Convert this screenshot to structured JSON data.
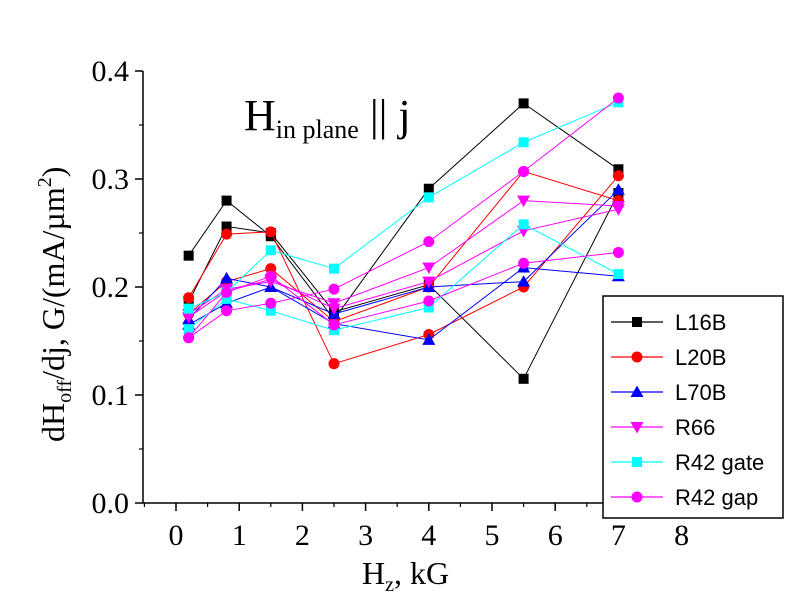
{
  "chart_data": {
    "type": "line",
    "xlabel": {
      "main": "H",
      "sub": "z",
      "rest": ", kG"
    },
    "ylabel": {
      "a": "dH",
      "sub": "off",
      "b": "/dj, G/(mA/µm",
      "sup": "2",
      "c": ")"
    },
    "annotation": {
      "main": "H",
      "sub": "in plane",
      "rest": " || j"
    },
    "xlim": [
      -0.5,
      8.5
    ],
    "ylim": [
      0,
      0.4
    ],
    "xticks": [
      0,
      1,
      2,
      3,
      4,
      5,
      6,
      7,
      8
    ],
    "yticks": [
      0.0,
      0.1,
      0.2,
      0.3,
      0.4
    ],
    "xtick_labels": [
      "0",
      "1",
      "2",
      "3",
      "4",
      "5",
      "6",
      "7",
      "8"
    ],
    "ytick_labels": [
      "0.0",
      "0.1",
      "0.2",
      "0.3",
      "0.4"
    ],
    "grid": false,
    "legend_position": "bottom-right",
    "series": [
      {
        "name": "L16B",
        "color": "#000000",
        "marker": "square",
        "lines": [
          [
            [
              0.2,
              0.229
            ],
            [
              0.8,
              0.28
            ],
            [
              1.5,
              0.247
            ],
            [
              2.5,
              0.17
            ],
            [
              4,
              0.291
            ],
            [
              5.5,
              0.37
            ],
            [
              7,
              0.309
            ]
          ],
          [
            [
              0.2,
              0.186
            ],
            [
              0.8,
              0.256
            ],
            [
              1.5,
              0.25
            ],
            [
              2.5,
              0.177
            ],
            [
              4,
              0.202
            ],
            [
              5.5,
              0.115
            ],
            [
              7,
              0.287
            ]
          ]
        ]
      },
      {
        "name": "L20B",
        "color": "#ff0000",
        "marker": "circle",
        "lines": [
          [
            [
              0.2,
              0.19
            ],
            [
              0.8,
              0.249
            ],
            [
              1.5,
              0.251
            ],
            [
              2.5,
              0.129
            ],
            [
              4,
              0.156
            ],
            [
              5.5,
              0.2
            ],
            [
              7,
              0.303
            ]
          ],
          [
            [
              0.2,
              0.175
            ],
            [
              0.8,
              0.205
            ],
            [
              1.5,
              0.217
            ],
            [
              2.5,
              0.168
            ],
            [
              4,
              0.2
            ],
            [
              5.5,
              0.307
            ],
            [
              7,
              0.28
            ]
          ]
        ]
      },
      {
        "name": "L70B",
        "color": "#0000ff",
        "marker": "triangle-up",
        "lines": [
          [
            [
              0.2,
              0.17
            ],
            [
              0.8,
              0.208
            ],
            [
              1.5,
              0.2
            ],
            [
              2.5,
              0.166
            ],
            [
              4,
              0.151
            ],
            [
              5.5,
              0.218
            ],
            [
              7,
              0.21
            ]
          ],
          [
            [
              0.2,
              0.165
            ],
            [
              0.8,
              0.185
            ],
            [
              1.5,
              0.2
            ],
            [
              2.5,
              0.175
            ],
            [
              4,
              0.2
            ],
            [
              5.5,
              0.205
            ],
            [
              7,
              0.29
            ]
          ]
        ]
      },
      {
        "name": "R66",
        "color": "#ff00ff",
        "marker": "triangle-down",
        "lines": [
          [
            [
              0.2,
              0.175
            ],
            [
              0.8,
              0.198
            ],
            [
              1.5,
              0.205
            ],
            [
              2.5,
              0.185
            ],
            [
              4,
              0.218
            ],
            [
              5.5,
              0.28
            ],
            [
              7,
              0.275
            ]
          ],
          [
            [
              0.2,
              0.172
            ],
            [
              0.8,
              0.196
            ],
            [
              1.5,
              0.207
            ],
            [
              2.5,
              0.18
            ],
            [
              4,
              0.205
            ],
            [
              5.5,
              0.252
            ],
            [
              7,
              0.272
            ]
          ]
        ]
      },
      {
        "name": "R42 gate",
        "color": "#00ffff",
        "marker": "square",
        "lines": [
          [
            [
              0.2,
              0.18
            ],
            [
              0.8,
              0.195
            ],
            [
              1.5,
              0.234
            ],
            [
              2.5,
              0.217
            ],
            [
              4,
              0.283
            ],
            [
              5.5,
              0.334
            ],
            [
              7,
              0.371
            ]
          ],
          [
            [
              0.2,
              0.161
            ],
            [
              0.8,
              0.189
            ],
            [
              1.5,
              0.178
            ],
            [
              2.5,
              0.16
            ],
            [
              4,
              0.181
            ],
            [
              5.5,
              0.258
            ],
            [
              7,
              0.212
            ]
          ]
        ]
      },
      {
        "name": "R42 gap",
        "color": "#ff00ff",
        "marker": "circle",
        "lines": [
          [
            [
              0.2,
              0.153
            ],
            [
              0.8,
              0.178
            ],
            [
              1.5,
              0.185
            ],
            [
              2.5,
              0.198
            ],
            [
              4,
              0.242
            ],
            [
              5.5,
              0.307
            ],
            [
              7,
              0.375
            ]
          ],
          [
            [
              0.2,
              0.153
            ],
            [
              0.8,
              0.195
            ],
            [
              1.5,
              0.21
            ],
            [
              2.5,
              0.165
            ],
            [
              4,
              0.187
            ],
            [
              5.5,
              0.222
            ],
            [
              7,
              0.232
            ]
          ]
        ]
      }
    ]
  }
}
